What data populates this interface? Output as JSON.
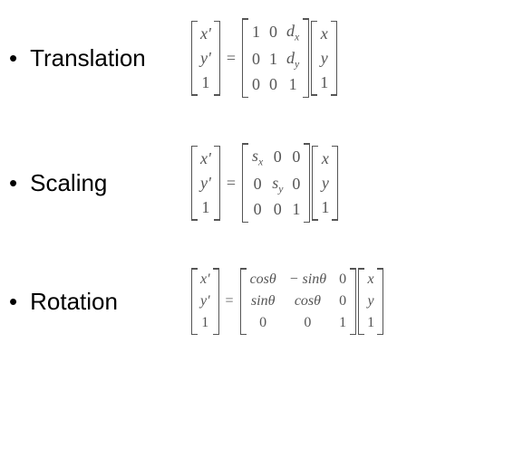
{
  "background_color": "#ffffff",
  "label_fontsize": 26,
  "label_font": "Arial",
  "math_font": "Times New Roman",
  "math_color": "#555555",
  "sections": {
    "translation": {
      "label": "Translation",
      "lhs": [
        "x'",
        "y'",
        "1"
      ],
      "matrix": [
        [
          "1",
          "0",
          "dₓ"
        ],
        [
          "0",
          "1",
          "d_y"
        ],
        [
          "0",
          "0",
          "1"
        ]
      ],
      "rhs": [
        "x",
        "y",
        "1"
      ]
    },
    "scaling": {
      "label": "Scaling",
      "lhs": [
        "x'",
        "y'",
        "1"
      ],
      "matrix": [
        [
          "sₓ",
          "0",
          "0"
        ],
        [
          "0",
          "s_y",
          "0"
        ],
        [
          "0",
          "0",
          "1"
        ]
      ],
      "rhs": [
        "x",
        "y",
        "1"
      ]
    },
    "rotation": {
      "label": "Rotation",
      "lhs": [
        "x'",
        "y'",
        "1"
      ],
      "matrix": [
        [
          "cosθ",
          "− sinθ",
          "0"
        ],
        [
          "sinθ",
          "cosθ",
          "0"
        ],
        [
          "0",
          "0",
          "1"
        ]
      ],
      "rhs": [
        "x",
        "y",
        "1"
      ]
    }
  }
}
